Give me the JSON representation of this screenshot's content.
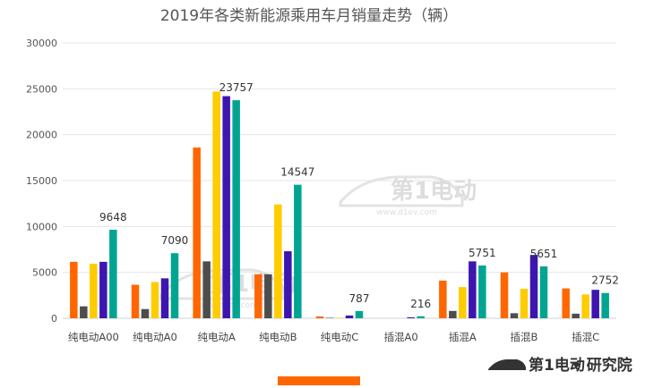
{
  "chart_data": {
    "type": "bar",
    "title": "2019年各类新能源乘用车月销量走势（辆）",
    "categories": [
      "纯电动A00",
      "纯电动A0",
      "纯电动A",
      "纯电动B",
      "纯电动C",
      "插混A0",
      "插混A",
      "插混B",
      "插混C"
    ],
    "series": [
      {
        "color": "#ff6600",
        "values": [
          6150,
          3650,
          18600,
          4800,
          200,
          0,
          4100,
          5000,
          3250
        ]
      },
      {
        "color": "#4d4d4d",
        "values": [
          1300,
          1000,
          6200,
          4800,
          50,
          0,
          800,
          550,
          500
        ]
      },
      {
        "color": "#ffcc00",
        "values": [
          5950,
          3950,
          24700,
          12400,
          50,
          0,
          3400,
          3200,
          2600
        ]
      },
      {
        "color": "#3d16b0",
        "values": [
          6150,
          4350,
          24200,
          7300,
          300,
          100,
          6200,
          6900,
          3100
        ]
      },
      {
        "color": "#00a591",
        "values": [
          9648,
          7090,
          23757,
          14547,
          787,
          216,
          5751,
          5651,
          2752
        ]
      }
    ],
    "data_labels": [
      "9648",
      "7090",
      "23757",
      "14547",
      "787",
      "216",
      "5751",
      "5651",
      "2752"
    ],
    "yticks": [
      "0",
      "5000",
      "10000",
      "15000",
      "20000",
      "25000",
      "30000"
    ],
    "ylim": [
      0,
      30000
    ],
    "grid": true,
    "legend": "none"
  },
  "watermark": {
    "logo_text": "第1电动",
    "url_text": "www.d1ev.com"
  },
  "footer": {
    "brand": "第1电动",
    "suffix": "• 研究院"
  },
  "colors": {
    "accent_bar": "#ff6600"
  }
}
